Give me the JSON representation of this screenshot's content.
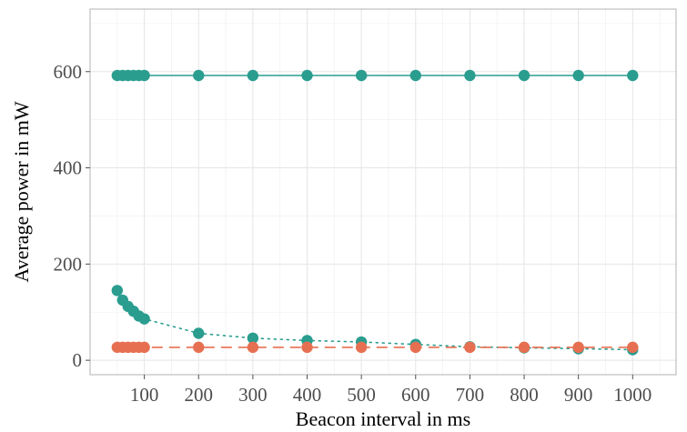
{
  "chart_data": {
    "type": "line",
    "title": "",
    "xlabel": "Beacon interval in ms",
    "ylabel": "Average power in mW",
    "xlim": [
      0,
      1080
    ],
    "ylim": [
      -30,
      730
    ],
    "x_ticks": [
      100,
      200,
      300,
      400,
      500,
      600,
      700,
      800,
      900,
      1000
    ],
    "x_tick_labels": [
      "100",
      "200",
      "300",
      "400",
      "500",
      "600",
      "700",
      "800",
      "900",
      "1000"
    ],
    "y_ticks": [
      0,
      200,
      400,
      600
    ],
    "y_tick_labels": [
      "0",
      "200",
      "400",
      "600"
    ],
    "grid": true,
    "x": [
      50,
      60,
      70,
      80,
      90,
      100,
      200,
      300,
      400,
      500,
      600,
      700,
      800,
      900,
      1000
    ],
    "series": [
      {
        "color": "#2a9d8f",
        "line_style": "solid",
        "values": [
          592,
          592,
          592,
          592,
          592,
          592,
          592,
          592,
          592,
          592,
          592,
          592,
          592,
          592,
          592
        ]
      },
      {
        "color": "#2a9d8f",
        "line_style": "dotted",
        "values": [
          145,
          125,
          112,
          102,
          92,
          86,
          56,
          46,
          41,
          38,
          33,
          28,
          26,
          24,
          22
        ]
      },
      {
        "color": "#e76f51",
        "line_style": "dashed",
        "values": [
          27,
          27,
          27,
          27,
          27,
          27,
          27,
          27,
          27,
          27,
          27,
          27,
          27,
          27,
          27
        ]
      }
    ]
  }
}
